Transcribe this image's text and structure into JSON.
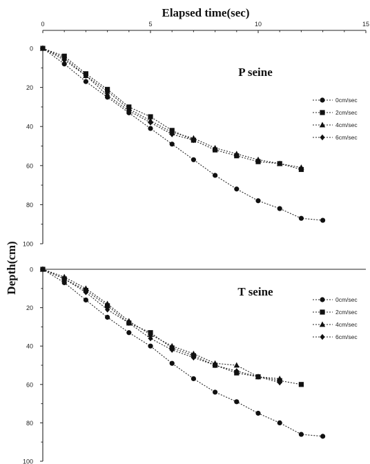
{
  "chart_data": {
    "type": "line",
    "title": "Elapsed time(sec)",
    "xlabel": "Elapsed time(sec)",
    "ylabel": "Depth(cm)",
    "xlim": [
      0,
      15
    ],
    "x_ticks": [
      0,
      5,
      10,
      15
    ],
    "ylim": [
      0,
      100
    ],
    "y_ticks": [
      0,
      20,
      40,
      60,
      80,
      100
    ],
    "y_inverted": true,
    "x_axis_position": "top",
    "grid": false,
    "legend_position": "right",
    "panels": [
      {
        "label": "P seine",
        "series": [
          {
            "name": "0cm/sec",
            "marker": "circle",
            "x": [
              0,
              1,
              2,
              3,
              4,
              5,
              6,
              7,
              8,
              9,
              10,
              11,
              12,
              13
            ],
            "y": [
              0,
              8,
              17,
              25,
              33,
              41,
              49,
              57,
              65,
              72,
              78,
              82,
              87,
              88
            ]
          },
          {
            "name": "2cm/sec",
            "marker": "square",
            "x": [
              0,
              1,
              2,
              3,
              4,
              5,
              6,
              7,
              8,
              9,
              10,
              11,
              12
            ],
            "y": [
              0,
              4,
              13,
              21,
              30,
              35,
              42,
              47,
              52,
              55,
              58,
              59,
              62
            ]
          },
          {
            "name": "4cm/sec",
            "marker": "triangle",
            "x": [
              0,
              1,
              2,
              3,
              4,
              5,
              6,
              7,
              8,
              9,
              10,
              11,
              12
            ],
            "y": [
              0,
              5,
              14,
              22,
              31,
              37,
              43,
              46,
              51,
              54,
              57,
              59,
              61
            ]
          },
          {
            "name": "6cm/sec",
            "marker": "diamond",
            "x": [
              0,
              1,
              2,
              3,
              4,
              5,
              6,
              7
            ],
            "y": [
              0,
              6,
              14,
              24,
              32,
              38,
              44,
              47
            ]
          }
        ]
      },
      {
        "label": "T seine",
        "series": [
          {
            "name": "0cm/sec",
            "marker": "circle",
            "x": [
              0,
              1,
              2,
              3,
              4,
              5,
              6,
              7,
              8,
              9,
              10,
              11,
              12,
              13
            ],
            "y": [
              0,
              7,
              16,
              25,
              33,
              40,
              49,
              57,
              64,
              69,
              75,
              80,
              86,
              87
            ]
          },
          {
            "name": "2cm/sec",
            "marker": "square",
            "x": [
              0,
              1,
              2,
              3,
              4,
              5,
              6,
              7,
              8,
              9,
              10,
              11,
              12
            ],
            "y": [
              0,
              5,
              11,
              19,
              28,
              33,
              41,
              45,
              50,
              54,
              56,
              58,
              60
            ]
          },
          {
            "name": "4cm/sec",
            "marker": "triangle",
            "x": [
              0,
              1,
              2,
              3,
              4,
              5,
              6,
              7,
              8,
              9,
              10,
              11
            ],
            "y": [
              0,
              4,
              10,
              18,
              27,
              34,
              40,
              44,
              49,
              50,
              56,
              57
            ]
          },
          {
            "name": "6cm/sec",
            "marker": "diamond",
            "x": [
              0,
              1,
              2,
              3,
              4,
              5,
              6,
              7,
              8,
              9,
              10,
              11
            ],
            "y": [
              0,
              5,
              12,
              21,
              28,
              36,
              42,
              46,
              50,
              53,
              56,
              59
            ]
          }
        ]
      }
    ]
  }
}
